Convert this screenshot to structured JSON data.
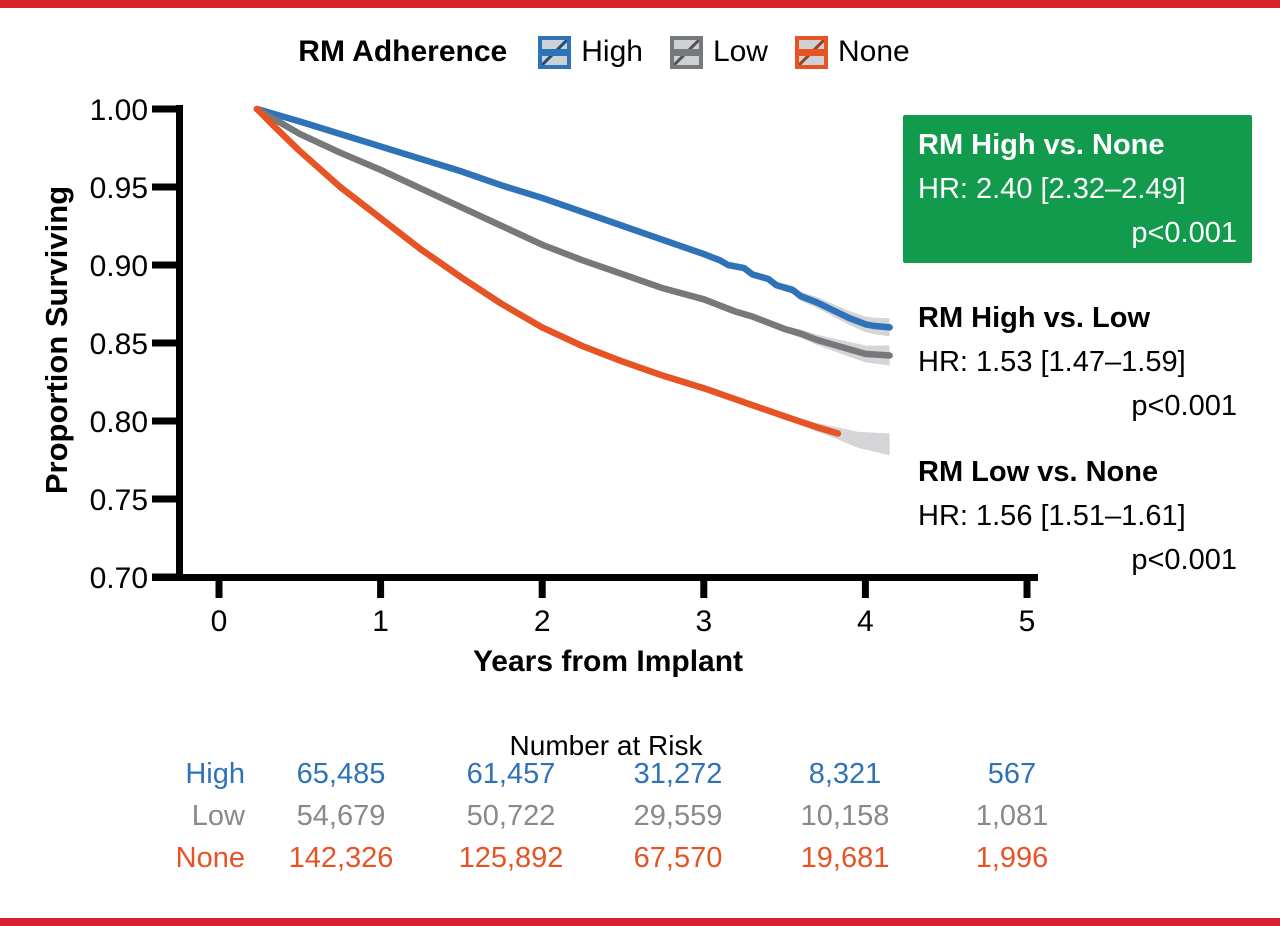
{
  "figure": {
    "border_color": "#D7222E",
    "background": "#FFFFFF"
  },
  "legend": {
    "title": "RM Adherence",
    "key_fill": "#CDD1D4",
    "items": [
      {
        "label": "High",
        "color": "#2E73B8",
        "dark": "#1B4D7E"
      },
      {
        "label": "Low",
        "color": "#77787B",
        "dark": "#515255"
      },
      {
        "label": "None",
        "color": "#E65426",
        "dark": "#A03C1D"
      }
    ]
  },
  "chart_data": {
    "type": "line",
    "title": "",
    "xlabel": "Years from Implant",
    "ylabel": "Proportion Surviving",
    "xlim": [
      0,
      5
    ],
    "ylim": [
      0.7,
      1.0
    ],
    "grid": false,
    "legend_position": "top",
    "x_ticks": [
      "0",
      "1",
      "2",
      "3",
      "4",
      "5"
    ],
    "y_ticks": [
      "1.00",
      "0.95",
      "0.90",
      "0.85",
      "0.80",
      "0.75",
      "0.70"
    ],
    "band_color": "#D5D5D7",
    "series": [
      {
        "name": "High",
        "color": "#2E73B8",
        "points": [
          [
            0.235,
            1.0
          ],
          [
            0.5,
            0.992
          ],
          [
            0.75,
            0.984
          ],
          [
            1.0,
            0.976
          ],
          [
            1.25,
            0.968
          ],
          [
            1.5,
            0.96
          ],
          [
            1.75,
            0.951
          ],
          [
            2.0,
            0.943
          ],
          [
            2.25,
            0.934
          ],
          [
            2.5,
            0.925
          ],
          [
            2.75,
            0.916
          ],
          [
            3.0,
            0.907
          ],
          [
            3.1,
            0.903
          ],
          [
            3.15,
            0.9
          ],
          [
            3.25,
            0.898
          ],
          [
            3.3,
            0.894
          ],
          [
            3.4,
            0.891
          ],
          [
            3.45,
            0.887
          ],
          [
            3.55,
            0.884
          ],
          [
            3.6,
            0.88
          ],
          [
            3.7,
            0.876
          ],
          [
            3.8,
            0.871
          ],
          [
            3.9,
            0.866
          ],
          [
            4.0,
            0.862
          ],
          [
            4.05,
            0.861
          ],
          [
            4.15,
            0.86
          ]
        ],
        "band": {
          "start": 3.15,
          "max_half": 9,
          "tail": []
        }
      },
      {
        "name": "Low",
        "color": "#77787B",
        "points": [
          [
            0.235,
            1.0
          ],
          [
            0.5,
            0.984
          ],
          [
            0.75,
            0.972
          ],
          [
            1.0,
            0.961
          ],
          [
            1.25,
            0.949
          ],
          [
            1.5,
            0.937
          ],
          [
            1.75,
            0.925
          ],
          [
            2.0,
            0.913
          ],
          [
            2.25,
            0.903
          ],
          [
            2.5,
            0.894
          ],
          [
            2.75,
            0.885
          ],
          [
            3.0,
            0.878
          ],
          [
            3.1,
            0.874
          ],
          [
            3.2,
            0.87
          ],
          [
            3.3,
            0.867
          ],
          [
            3.4,
            0.863
          ],
          [
            3.5,
            0.859
          ],
          [
            3.6,
            0.856
          ],
          [
            3.7,
            0.852
          ],
          [
            3.8,
            0.849
          ],
          [
            3.9,
            0.846
          ],
          [
            4.0,
            0.843
          ],
          [
            4.15,
            0.842
          ]
        ],
        "band": {
          "start": 3.25,
          "max_half": 10,
          "tail": []
        }
      },
      {
        "name": "None",
        "color": "#E65426",
        "points": [
          [
            0.235,
            1.0
          ],
          [
            0.35,
            0.988
          ],
          [
            0.5,
            0.973
          ],
          [
            0.75,
            0.95
          ],
          [
            1.0,
            0.93
          ],
          [
            1.25,
            0.91
          ],
          [
            1.5,
            0.892
          ],
          [
            1.75,
            0.875
          ],
          [
            2.0,
            0.86
          ],
          [
            2.25,
            0.848
          ],
          [
            2.5,
            0.838
          ],
          [
            2.75,
            0.829
          ],
          [
            3.0,
            0.821
          ],
          [
            3.25,
            0.812
          ],
          [
            3.5,
            0.803
          ],
          [
            3.7,
            0.796
          ],
          [
            3.83,
            0.792
          ]
        ],
        "band": {
          "start": 3.5,
          "max_half": 11,
          "tail": [
            [
              3.95,
              0.788
            ],
            [
              4.15,
              0.785
            ]
          ]
        }
      }
    ]
  },
  "annotations": [
    {
      "title": "RM High vs. None",
      "hr": "HR: 2.40 [2.32–2.49]",
      "p": "p<0.001",
      "highlight": true,
      "bg": "#129B4D",
      "text_color": "#FFFFFF"
    },
    {
      "title": "RM High vs. Low",
      "hr": "HR: 1.53 [1.47–1.59]",
      "p": "p<0.001",
      "highlight": false
    },
    {
      "title": "RM Low vs. None",
      "hr": "HR: 1.56 [1.51–1.61]",
      "p": "p<0.001",
      "highlight": false
    }
  ],
  "risk_table": {
    "title": "Number at Risk",
    "rows": [
      {
        "label": "High",
        "color": "#2E73B8",
        "values": [
          "65,485",
          "61,457",
          "31,272",
          "8,321",
          "567"
        ]
      },
      {
        "label": "Low",
        "color": "#88898C",
        "values": [
          "54,679",
          "50,722",
          "29,559",
          "10,158",
          "1,081"
        ]
      },
      {
        "label": "None",
        "color": "#E65426",
        "values": [
          "142,326",
          "125,892",
          "67,570",
          "19,681",
          "1,996"
        ]
      }
    ]
  }
}
